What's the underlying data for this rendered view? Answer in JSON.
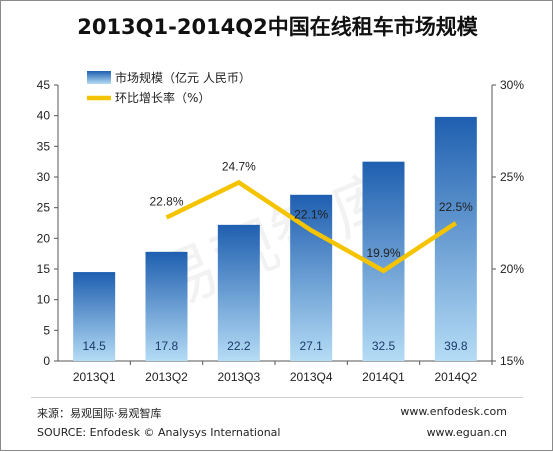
{
  "chart_data": {
    "type": "bar",
    "title": "2013Q1-2014Q2中国在线租车市场规模",
    "categories": [
      "2013Q1",
      "2013Q2",
      "2013Q3",
      "2013Q4",
      "2014Q1",
      "2014Q2"
    ],
    "series": [
      {
        "name": "市场规模（亿元 人民币）",
        "type": "bar",
        "axis": "left",
        "values": [
          14.5,
          17.8,
          22.2,
          27.1,
          32.5,
          39.8
        ],
        "labels": [
          "14.5",
          "17.8",
          "22.2",
          "27.1",
          "32.5",
          "39.8"
        ]
      },
      {
        "name": "环比增长率（%）",
        "type": "line",
        "axis": "right",
        "values": [
          null,
          22.8,
          24.7,
          22.1,
          19.9,
          22.5
        ],
        "labels": [
          "",
          "22.8%",
          "24.7%",
          "22.1%",
          "19.9%",
          "22.5%"
        ]
      }
    ],
    "ylim": [
      0,
      45
    ],
    "yticks": [
      "0",
      "5",
      "10",
      "15",
      "20",
      "25",
      "30",
      "35",
      "40",
      "45"
    ],
    "y2lim": [
      15,
      30
    ],
    "y2ticks": [
      "15%",
      "20%",
      "25%",
      "30%"
    ],
    "grid": false,
    "legend": "top-left",
    "watermark": "易观智库",
    "colors": {
      "bar_top": "#1f5fb0",
      "bar_bottom": "#b5dcf5",
      "line": "#f5c400",
      "bar_label": "#1b3a6b"
    }
  },
  "footer": {
    "source_cn": "来源：易观国际·易观智库",
    "source_en": "SOURCE: Enfodesk © Analysys International",
    "website1": "www.enfodesk.com",
    "website2": "www.eguan.cn"
  }
}
